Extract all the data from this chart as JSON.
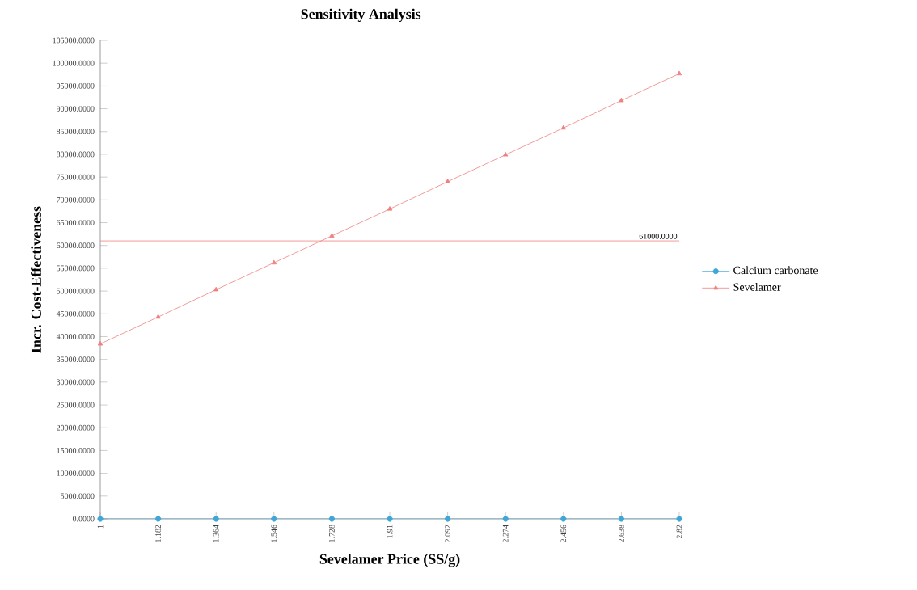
{
  "chart_data": {
    "type": "line",
    "title": "Sensitivity Analysis",
    "xlabel": "Sevelamer Price (SS/g)",
    "ylabel": "Incr. Cost-Effectiveness",
    "categories": [
      "1",
      "1.182",
      "1.364",
      "1.546",
      "1.728",
      "1.91",
      "2.092",
      "2.274",
      "2.456",
      "2.638",
      "2.82"
    ],
    "series": [
      {
        "name": "Calcium carbonate",
        "color": "#3fa6d8",
        "marker": "circle",
        "values": [
          0,
          0,
          0,
          0,
          0,
          0,
          0,
          0,
          0,
          0,
          0
        ]
      },
      {
        "name": "Sevelamer",
        "color": "#f08080",
        "marker": "triangle",
        "values": [
          38400,
          44300,
          50300,
          56200,
          62100,
          68000,
          74000,
          79900,
          85800,
          91800,
          97700
        ]
      }
    ],
    "ylim": [
      0,
      105000
    ],
    "yticks": [
      {
        "value": 0,
        "label": "0.0000"
      },
      {
        "value": 5000,
        "label": "5000.0000"
      },
      {
        "value": 10000,
        "label": "10000.0000"
      },
      {
        "value": 15000,
        "label": "15000.0000"
      },
      {
        "value": 20000,
        "label": "20000.0000"
      },
      {
        "value": 25000,
        "label": "25000.0000"
      },
      {
        "value": 30000,
        "label": "30000.0000"
      },
      {
        "value": 35000,
        "label": "35000.0000"
      },
      {
        "value": 40000,
        "label": "40000.0000"
      },
      {
        "value": 45000,
        "label": "45000.0000"
      },
      {
        "value": 50000,
        "label": "50000.0000"
      },
      {
        "value": 55000,
        "label": "55000.0000"
      },
      {
        "value": 60000,
        "label": "60000.0000"
      },
      {
        "value": 65000,
        "label": "65000.0000"
      },
      {
        "value": 70000,
        "label": "70000.0000"
      },
      {
        "value": 75000,
        "label": "75000.0000"
      },
      {
        "value": 80000,
        "label": "80000.0000"
      },
      {
        "value": 85000,
        "label": "85000.0000"
      },
      {
        "value": 90000,
        "label": "90000.0000"
      },
      {
        "value": 95000,
        "label": "95000.0000"
      },
      {
        "value": 100000,
        "label": "100000.0000"
      },
      {
        "value": 105000,
        "label": "105000.0000"
      }
    ],
    "ref_lines": [
      {
        "axis": "y",
        "value": 61000,
        "label": "61000.0000",
        "color": "#f08080"
      }
    ],
    "grid": false,
    "legend": "right",
    "line_style": "solid"
  }
}
